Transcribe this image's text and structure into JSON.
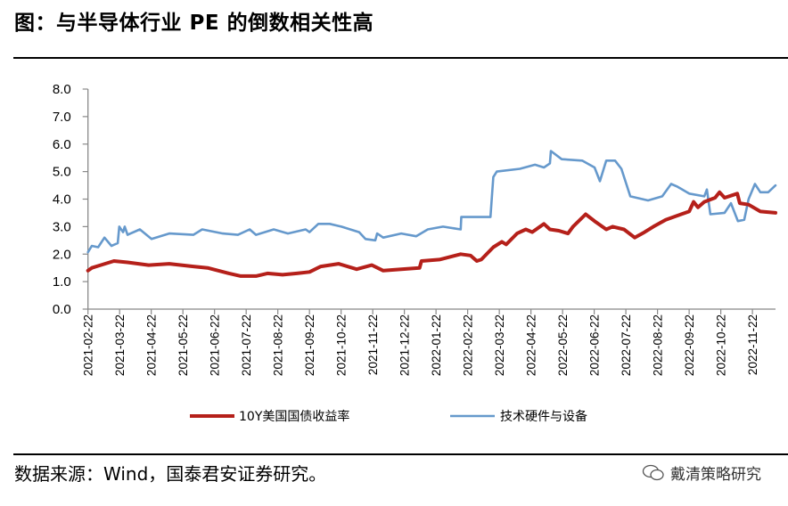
{
  "title": "图：与半导体行业 PE 的倒数相关性高",
  "footer": "数据来源：Wind，国泰君安证券研究。",
  "watermark": "戴清策略研究",
  "colors": {
    "red": "#B5201A",
    "blue": "#6699CC"
  },
  "chart_data": {
    "type": "line",
    "title": "与半导体行业 PE 的倒数相关性高",
    "x_unit": "months since 2021-02-22",
    "xlim": [
      0,
      21.73
    ],
    "ylim": [
      0,
      8
    ],
    "yticks": [
      "0.0",
      "1.0",
      "2.0",
      "3.0",
      "4.0",
      "5.0",
      "6.0",
      "7.0",
      "8.0"
    ],
    "xticks": [
      "2021-02-22",
      "2021-03-22",
      "2021-04-22",
      "2021-05-22",
      "2021-06-22",
      "2021-07-22",
      "2021-08-22",
      "2021-09-22",
      "2021-10-22",
      "2021-11-22",
      "2021-12-22",
      "2022-01-22",
      "2022-02-22",
      "2022-03-22",
      "2022-04-22",
      "2022-05-22",
      "2022-06-22",
      "2022-07-22",
      "2022-08-22",
      "2022-09-22",
      "2022-10-22",
      "2022-11-22"
    ],
    "grid": false,
    "legend_position": "bottom",
    "series": [
      {
        "name": "10Y美国国债收益率",
        "color": "#B5201A",
        "x": [
          0,
          0.12,
          0.4,
          0.82,
          1.25,
          1.92,
          2.57,
          3.33,
          3.78,
          4.46,
          4.83,
          5.31,
          5.67,
          6.15,
          6.6,
          7.0,
          7.36,
          7.92,
          8.49,
          8.97,
          9.33,
          9.9,
          10.48,
          10.54,
          11.11,
          11.78,
          12.09,
          12.29,
          12.43,
          12.81,
          13.08,
          13.22,
          13.56,
          13.84,
          14.04,
          14.41,
          14.6,
          14.88,
          15.17,
          15.33,
          15.73,
          16.01,
          16.38,
          16.58,
          16.94,
          17.28,
          17.59,
          17.87,
          18.26,
          18.63,
          19.0,
          19.14,
          19.28,
          19.48,
          19.82,
          19.96,
          20.12,
          20.52,
          20.6,
          20.88,
          21.25,
          21.73
        ],
        "y": [
          1.4,
          1.5,
          1.6,
          1.75,
          1.7,
          1.6,
          1.65,
          1.55,
          1.5,
          1.3,
          1.2,
          1.2,
          1.3,
          1.25,
          1.3,
          1.35,
          1.55,
          1.65,
          1.45,
          1.6,
          1.4,
          1.45,
          1.5,
          1.75,
          1.8,
          2.0,
          1.95,
          1.75,
          1.8,
          2.25,
          2.45,
          2.35,
          2.75,
          2.9,
          2.8,
          3.1,
          2.9,
          2.85,
          2.75,
          3.0,
          3.45,
          3.2,
          2.9,
          3.0,
          2.9,
          2.6,
          2.8,
          3.0,
          3.25,
          3.4,
          3.55,
          3.9,
          3.7,
          3.9,
          4.05,
          4.25,
          4.05,
          4.2,
          3.85,
          3.8,
          3.55,
          3.5
        ]
      },
      {
        "name": "技术硬件与设备",
        "color": "#6699CC",
        "x": [
          0,
          0.12,
          0.32,
          0.52,
          0.74,
          0.94,
          0.99,
          1.11,
          1.16,
          1.25,
          1.64,
          2.01,
          2.57,
          3.33,
          3.61,
          4.26,
          4.74,
          5.11,
          5.31,
          5.87,
          6.32,
          6.88,
          7.0,
          7.28,
          7.64,
          8.01,
          8.57,
          8.77,
          9.08,
          9.14,
          9.33,
          9.9,
          10.37,
          10.74,
          11.22,
          11.78,
          11.8,
          12.72,
          12.81,
          12.92,
          13.65,
          14.13,
          14.41,
          14.6,
          14.63,
          14.97,
          15.62,
          16.01,
          16.18,
          16.38,
          16.66,
          16.86,
          17.14,
          17.7,
          18.15,
          18.43,
          18.63,
          19.0,
          19.48,
          19.56,
          19.67,
          20.12,
          20.32,
          20.54,
          20.74,
          20.88,
          21.08,
          21.25,
          21.5,
          21.73
        ],
        "y": [
          2.07,
          2.3,
          2.25,
          2.6,
          2.3,
          2.4,
          3.0,
          2.8,
          3.0,
          2.7,
          2.9,
          2.55,
          2.75,
          2.7,
          2.9,
          2.75,
          2.7,
          2.9,
          2.7,
          2.9,
          2.75,
          2.9,
          2.8,
          3.1,
          3.1,
          3.0,
          2.8,
          2.55,
          2.5,
          2.75,
          2.6,
          2.75,
          2.65,
          2.9,
          3.0,
          2.9,
          3.35,
          3.35,
          4.8,
          5.0,
          5.1,
          5.25,
          5.15,
          5.3,
          5.75,
          5.45,
          5.4,
          5.15,
          4.65,
          5.4,
          5.4,
          5.1,
          4.1,
          3.95,
          4.1,
          4.55,
          4.45,
          4.2,
          4.1,
          4.35,
          3.45,
          3.5,
          3.85,
          3.2,
          3.25,
          4.0,
          4.55,
          4.25,
          4.25,
          4.5
        ]
      }
    ]
  }
}
